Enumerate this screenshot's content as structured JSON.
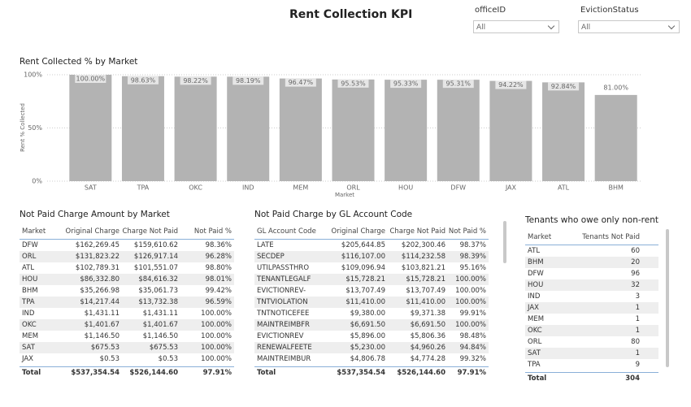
{
  "header": {
    "title": "Rent Collection KPI"
  },
  "filters": [
    {
      "label": "officeID",
      "value": "All"
    },
    {
      "label": "EvictionStatus",
      "value": "All"
    }
  ],
  "chart_data": {
    "type": "bar",
    "title": "Rent Collected % by Market",
    "x_label": "Market",
    "y_label": "Rent % Collected",
    "categories": [
      "SAT",
      "TPA",
      "OKC",
      "IND",
      "MEM",
      "ORL",
      "HOU",
      "DFW",
      "JAX",
      "ATL",
      "BHM"
    ],
    "values": [
      100.0,
      98.63,
      98.22,
      98.19,
      96.47,
      95.53,
      95.33,
      95.31,
      94.22,
      92.84,
      81.0
    ],
    "value_labels": [
      "100.00%",
      "98.63%",
      "98.22%",
      "98.19%",
      "96.47%",
      "95.53%",
      "95.33%",
      "95.31%",
      "94.22%",
      "92.84%",
      "81.00%"
    ],
    "color": "#b3b3b3",
    "ylim": [
      0,
      100
    ],
    "yticks": [
      {
        "value": 0,
        "label": "0%"
      },
      {
        "value": 50,
        "label": "50%"
      },
      {
        "value": 100,
        "label": "100%"
      }
    ],
    "grid": true
  },
  "tables": [
    {
      "title": "Not Paid Charge Amount by Market",
      "headers": [
        "Market",
        "Original Charge",
        "Charge Not Paid",
        "Not Paid %"
      ],
      "rows": [
        [
          "DFW",
          "$162,269.45",
          "$159,610.62",
          "98.36%"
        ],
        [
          "ORL",
          "$131,823.22",
          "$126,917.14",
          "96.28%"
        ],
        [
          "ATL",
          "$102,789.31",
          "$101,551.07",
          "98.80%"
        ],
        [
          "HOU",
          "$86,332.80",
          "$84,616.32",
          "98.01%"
        ],
        [
          "BHM",
          "$35,266.98",
          "$35,061.73",
          "99.42%"
        ],
        [
          "TPA",
          "$14,217.44",
          "$13,732.38",
          "96.59%"
        ],
        [
          "IND",
          "$1,431.11",
          "$1,431.11",
          "100.00%"
        ],
        [
          "OKC",
          "$1,401.67",
          "$1,401.67",
          "100.00%"
        ],
        [
          "MEM",
          "$1,146.50",
          "$1,146.50",
          "100.00%"
        ],
        [
          "SAT",
          "$675.53",
          "$675.53",
          "100.00%"
        ],
        [
          "JAX",
          "$0.53",
          "$0.53",
          "100.00%"
        ]
      ],
      "total": [
        "Total",
        "$537,354.54",
        "$526,144.60",
        "97.91%"
      ]
    },
    {
      "title": "Not Paid Charge by GL Account Code",
      "headers": [
        "GL Account Code",
        "Original Charge",
        "Charge Not Paid",
        "Not Paid %"
      ],
      "rows": [
        [
          "LATE",
          "$205,644.85",
          "$202,300.46",
          "98.37%"
        ],
        [
          "SECDEP",
          "$116,107.00",
          "$114,232.58",
          "98.39%"
        ],
        [
          "UTILPASSTHRO",
          "$109,096.94",
          "$103,821.21",
          "95.16%"
        ],
        [
          "TENANTLEGALF",
          "$15,728.21",
          "$15,728.21",
          "100.00%"
        ],
        [
          "EVICTIONREV-",
          "$13,707.49",
          "$13,707.49",
          "100.00%"
        ],
        [
          "TNTVIOLATION",
          "$11,410.00",
          "$11,410.00",
          "100.00%"
        ],
        [
          "TNTNOTICEFEE",
          "$9,380.00",
          "$9,371.38",
          "99.91%"
        ],
        [
          "MAINTREIMBFR",
          "$6,691.50",
          "$6,691.50",
          "100.00%"
        ],
        [
          "EVICTIONREV",
          "$5,896.00",
          "$5,806.36",
          "98.48%"
        ],
        [
          "RENEWALFEETE",
          "$5,230.00",
          "$4,960.26",
          "94.84%"
        ],
        [
          "MAINTREIMBUR",
          "$4,806.78",
          "$4,774.28",
          "99.32%"
        ]
      ],
      "total": [
        "Total",
        "$537,354.54",
        "$526,144.60",
        "97.91%"
      ]
    },
    {
      "title": "Tenants who owe only non-rent",
      "headers": [
        "Market",
        "Tenants Not Paid"
      ],
      "rows": [
        [
          "ATL",
          "60"
        ],
        [
          "BHM",
          "20"
        ],
        [
          "DFW",
          "96"
        ],
        [
          "HOU",
          "32"
        ],
        [
          "IND",
          "3"
        ],
        [
          "JAX",
          "1"
        ],
        [
          "MEM",
          "1"
        ],
        [
          "OKC",
          "1"
        ],
        [
          "ORL",
          "80"
        ],
        [
          "SAT",
          "1"
        ],
        [
          "TPA",
          "9"
        ]
      ],
      "total": [
        "Total",
        "304"
      ]
    }
  ]
}
